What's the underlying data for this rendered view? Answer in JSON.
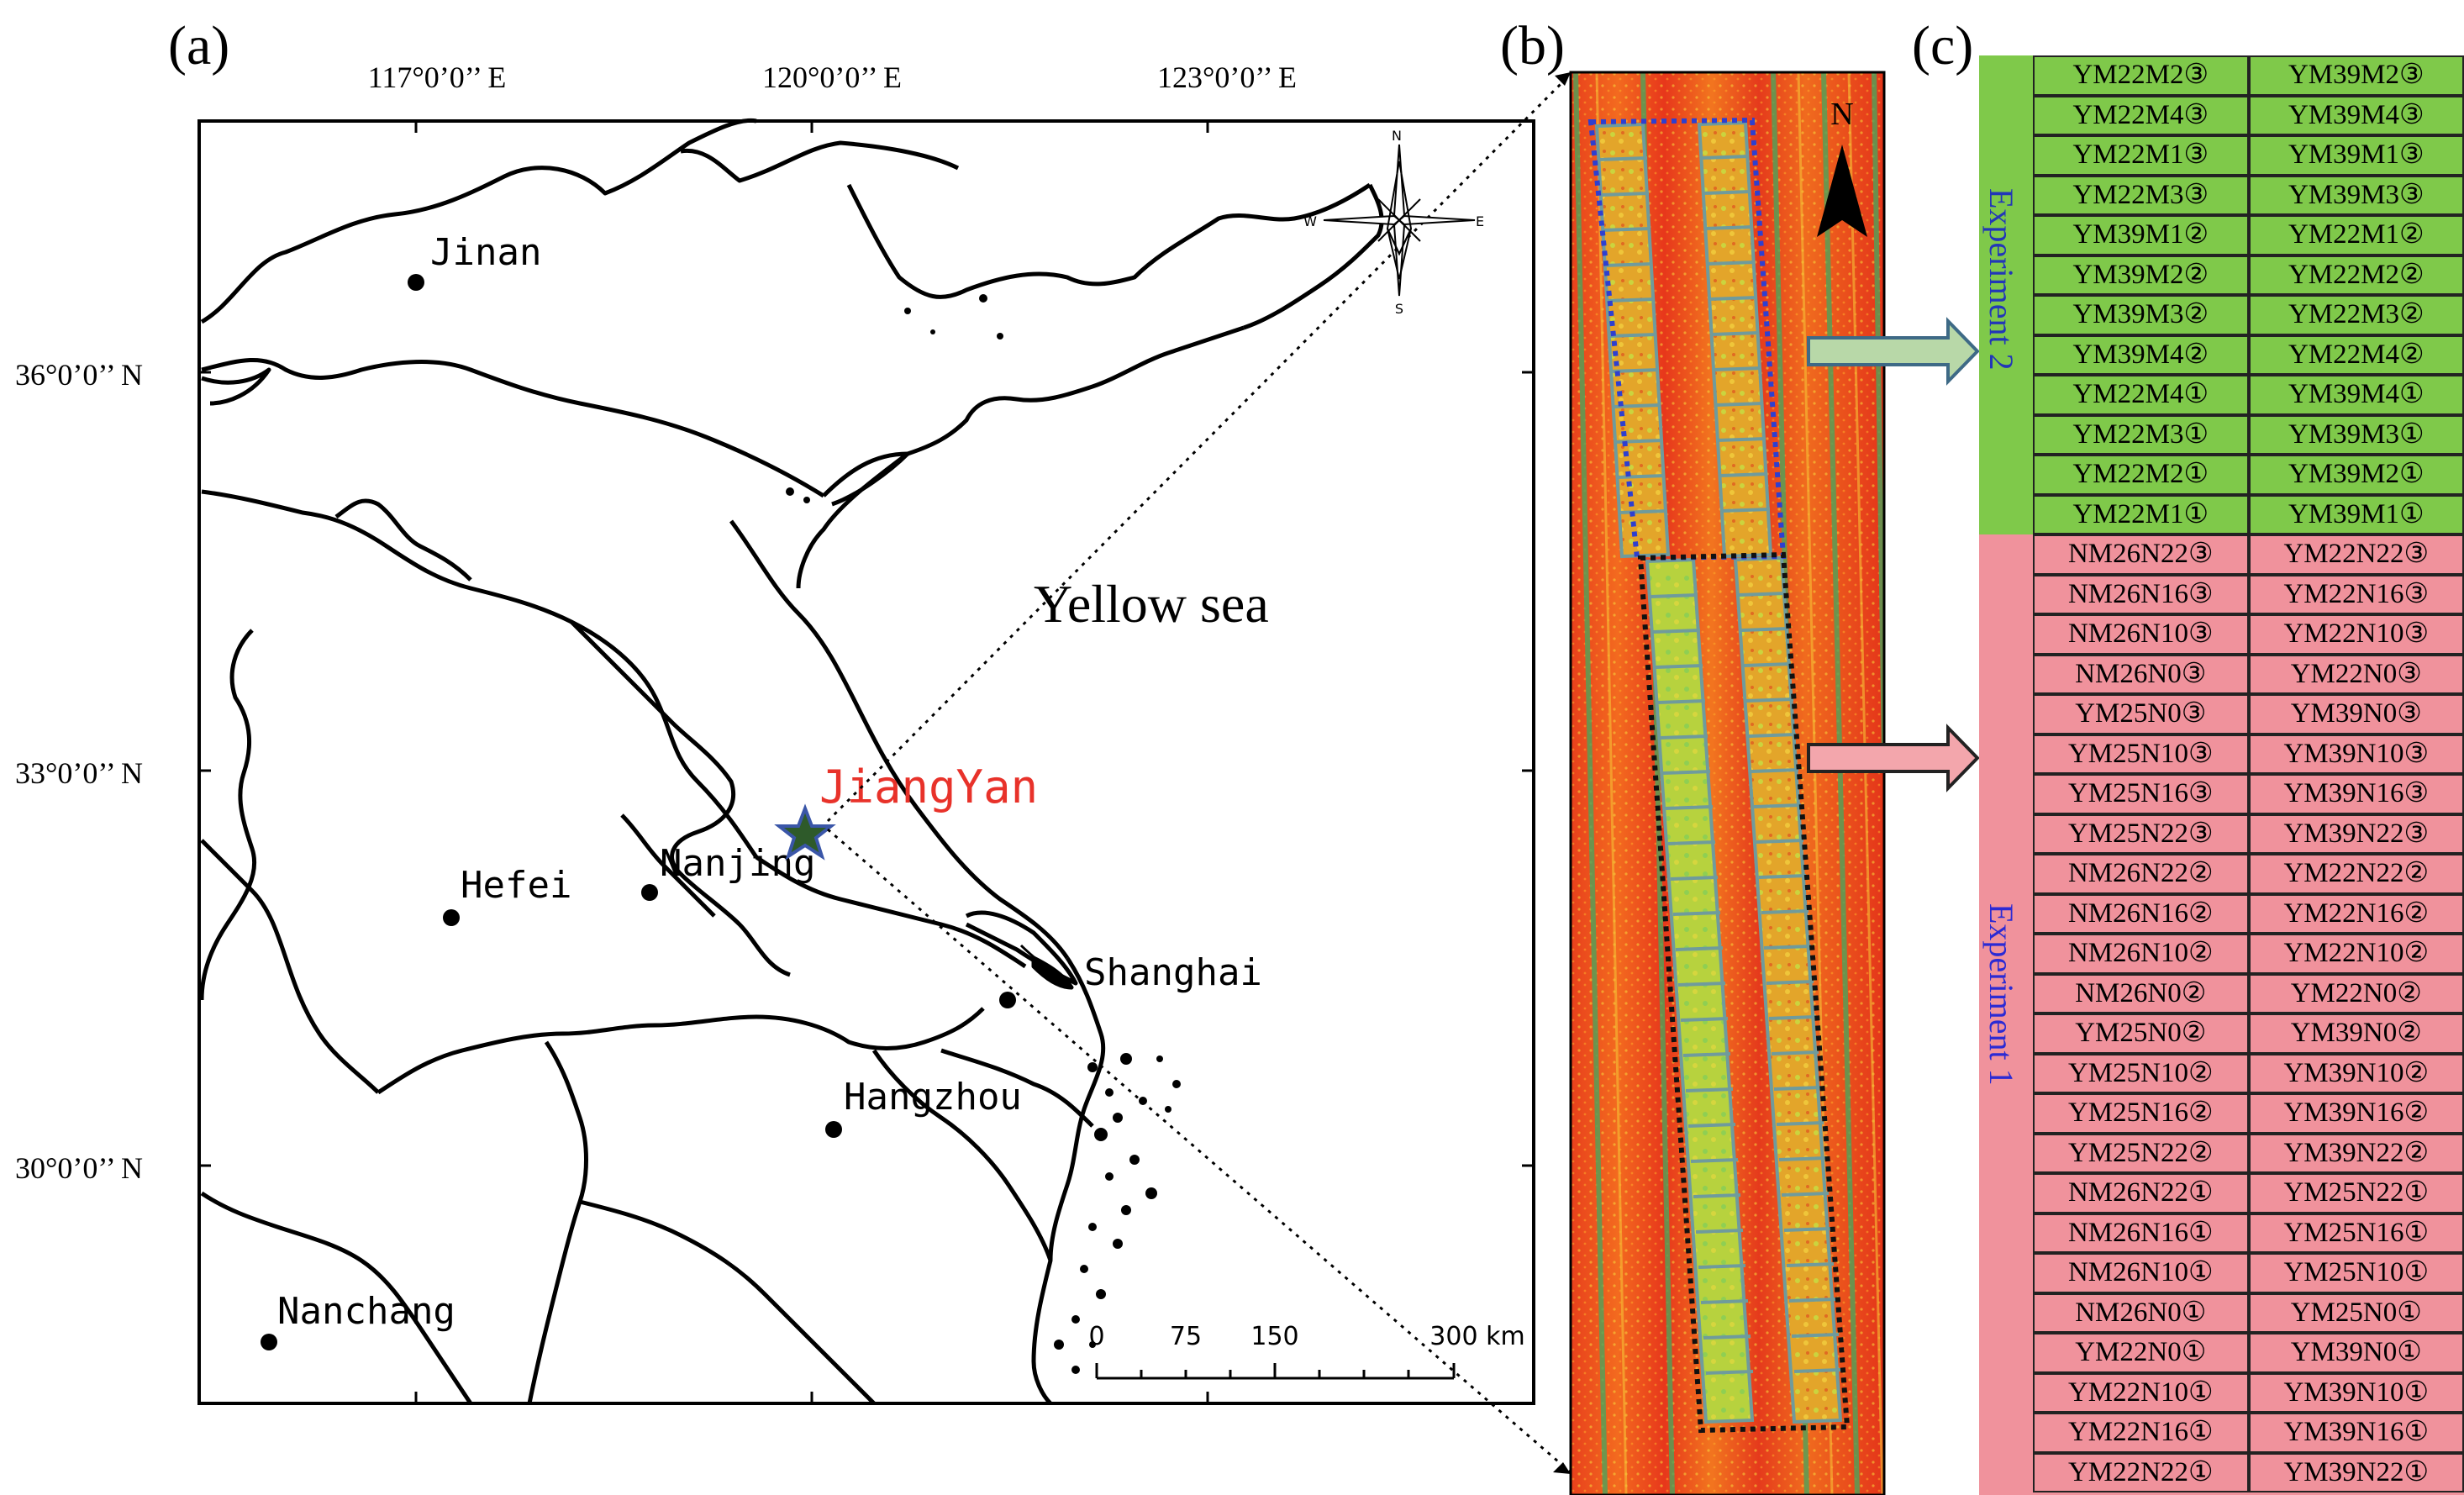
{
  "panels": {
    "a": "(a)",
    "b": "(b)",
    "c": "(c)"
  },
  "map": {
    "lon_labels": [
      "117°0’0’’ E",
      "120°0’0’’ E",
      "123°0’0’’ E"
    ],
    "lat_labels": [
      "36°0’0’’ N",
      "33°0’0’’ N",
      "30°0’0’’ N"
    ],
    "sea_label": "Yellow sea",
    "study_site": "JiangYan",
    "cities": [
      "Jinan",
      "Hefei",
      "Nanjing",
      "Shanghai",
      "Hangzhou",
      "Nanchang"
    ],
    "compass": {
      "n": "N",
      "s": "S",
      "e": "E",
      "w": "W"
    },
    "scale_ticks": [
      "0",
      "75",
      "150",
      "300 km"
    ],
    "colors": {
      "site": "#e8322a",
      "star_fill": "#2e5a2a",
      "star_edge": "#3a56a8"
    }
  },
  "aerial": {
    "north": "N",
    "exp2_box_color": "#2e3fd0",
    "exp1_box_color": "#111111"
  },
  "table": {
    "exp2": {
      "label": "Experiment 2",
      "color": "#7fc94a",
      "rows": [
        [
          "YM22M2③",
          "YM39M2③"
        ],
        [
          "YM22M4③",
          "YM39M4③"
        ],
        [
          "YM22M1③",
          "YM39M1③"
        ],
        [
          "YM22M3③",
          "YM39M3③"
        ],
        [
          "YM39M1②",
          "YM22M1②"
        ],
        [
          "YM39M2②",
          "YM22M2②"
        ],
        [
          "YM39M3②",
          "YM22M3②"
        ],
        [
          "YM39M4②",
          "YM22M4②"
        ],
        [
          "YM22M4①",
          "YM39M4①"
        ],
        [
          "YM22M3①",
          "YM39M3①"
        ],
        [
          "YM22M2①",
          "YM39M2①"
        ],
        [
          "YM22M1①",
          "YM39M1①"
        ]
      ]
    },
    "exp1": {
      "label": "Experiment 1",
      "color": "#f0929c",
      "rows": [
        [
          "NM26N22③",
          "YM22N22③"
        ],
        [
          "NM26N16③",
          "YM22N16③"
        ],
        [
          "NM26N10③",
          "YM22N10③"
        ],
        [
          "NM26N0③",
          "YM22N0③"
        ],
        [
          "YM25N0③",
          "YM39N0③"
        ],
        [
          "YM25N10③",
          "YM39N10③"
        ],
        [
          "YM25N16③",
          "YM39N16③"
        ],
        [
          "YM25N22③",
          "YM39N22③"
        ],
        [
          "NM26N22②",
          "YM22N22②"
        ],
        [
          "NM26N16②",
          "YM22N16②"
        ],
        [
          "NM26N10②",
          "YM22N10②"
        ],
        [
          "NM26N0②",
          "YM22N0②"
        ],
        [
          "YM25N0②",
          "YM39N0②"
        ],
        [
          "YM25N10②",
          "YM39N10②"
        ],
        [
          "YM25N16②",
          "YM39N16②"
        ],
        [
          "YM25N22②",
          "YM39N22②"
        ],
        [
          "NM26N22①",
          "YM25N22①"
        ],
        [
          "NM26N16①",
          "YM25N16①"
        ],
        [
          "NM26N10①",
          "YM25N10①"
        ],
        [
          "NM26N0①",
          "YM25N0①"
        ],
        [
          "YM22N0①",
          "YM39N0①"
        ],
        [
          "YM22N10①",
          "YM39N10①"
        ],
        [
          "YM22N16①",
          "YM39N16①"
        ],
        [
          "YM22N22①",
          "YM39N22①"
        ]
      ]
    }
  }
}
